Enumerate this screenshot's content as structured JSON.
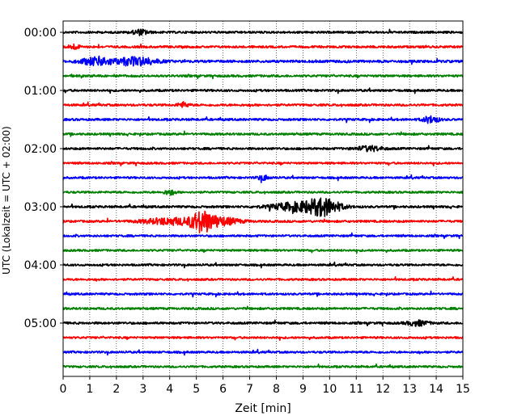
{
  "chart_data": {
    "type": "line",
    "title": "",
    "xlabel": "Zeit  [min]",
    "ylabel": "UTC (Lokalzeit = UTC + 02:00)",
    "xlim": [
      0,
      15
    ],
    "x_ticks": [
      "0",
      "1",
      "2",
      "3",
      "4",
      "5",
      "6",
      "7",
      "8",
      "9",
      "10",
      "11",
      "12",
      "13",
      "14",
      "15"
    ],
    "y_tick_labels": [
      "00:00",
      "01:00",
      "02:00",
      "03:00",
      "04:00",
      "05:00"
    ],
    "y_tick_rows": [
      0,
      4,
      8,
      12,
      16,
      20
    ],
    "grid": "vertical dotted",
    "trace_interval_minutes": 15,
    "colors_cycle": [
      "#000000",
      "#ff0000",
      "#0000ff",
      "#008000"
    ],
    "rows": [
      {
        "start": "00:00",
        "color": "#000000",
        "noise": 1.3,
        "events": [
          {
            "t": 2.9,
            "amp": 3,
            "dur": 0.3
          }
        ]
      },
      {
        "start": "00:15",
        "color": "#ff0000",
        "noise": 1.3,
        "events": [
          {
            "t": 0.4,
            "amp": 3,
            "dur": 0.2
          }
        ]
      },
      {
        "start": "00:30",
        "color": "#0000ff",
        "noise": 1.5,
        "events": [
          {
            "t": 1.3,
            "amp": 5,
            "dur": 0.6
          },
          {
            "t": 2.8,
            "amp": 5,
            "dur": 0.7
          }
        ]
      },
      {
        "start": "00:45",
        "color": "#008000",
        "noise": 1.3,
        "events": []
      },
      {
        "start": "01:00",
        "color": "#000000",
        "noise": 1.3,
        "events": []
      },
      {
        "start": "01:15",
        "color": "#ff0000",
        "noise": 1.3,
        "events": [
          {
            "t": 4.5,
            "amp": 3,
            "dur": 0.2
          }
        ]
      },
      {
        "start": "01:30",
        "color": "#0000ff",
        "noise": 1.3,
        "events": [
          {
            "t": 13.8,
            "amp": 4,
            "dur": 0.3
          }
        ]
      },
      {
        "start": "01:45",
        "color": "#008000",
        "noise": 1.3,
        "events": []
      },
      {
        "start": "02:00",
        "color": "#000000",
        "noise": 1.3,
        "events": [
          {
            "t": 11.5,
            "amp": 3,
            "dur": 0.5
          }
        ]
      },
      {
        "start": "02:15",
        "color": "#ff0000",
        "noise": 1.2,
        "events": []
      },
      {
        "start": "02:30",
        "color": "#0000ff",
        "noise": 1.2,
        "events": [
          {
            "t": 7.5,
            "amp": 3,
            "dur": 0.2
          }
        ]
      },
      {
        "start": "02:45",
        "color": "#008000",
        "noise": 1.2,
        "events": [
          {
            "t": 4.0,
            "amp": 3,
            "dur": 0.2
          }
        ]
      },
      {
        "start": "03:00",
        "color": "#000000",
        "noise": 1.3,
        "events": [
          {
            "t": 8.8,
            "amp": 5,
            "dur": 1.0
          },
          {
            "t": 9.8,
            "amp": 9,
            "dur": 0.6
          }
        ]
      },
      {
        "start": "03:15",
        "color": "#ff0000",
        "noise": 1.3,
        "events": [
          {
            "t": 4.0,
            "amp": 4,
            "dur": 1.0
          },
          {
            "t": 5.2,
            "amp": 10,
            "dur": 0.4
          },
          {
            "t": 5.8,
            "amp": 5,
            "dur": 0.8
          }
        ]
      },
      {
        "start": "03:30",
        "color": "#0000ff",
        "noise": 1.2,
        "events": []
      },
      {
        "start": "03:45",
        "color": "#008000",
        "noise": 1.2,
        "events": []
      },
      {
        "start": "04:00",
        "color": "#000000",
        "noise": 1.2,
        "events": []
      },
      {
        "start": "04:15",
        "color": "#ff0000",
        "noise": 1.2,
        "events": []
      },
      {
        "start": "04:30",
        "color": "#0000ff",
        "noise": 1.2,
        "events": []
      },
      {
        "start": "04:45",
        "color": "#008000",
        "noise": 1.3,
        "events": []
      },
      {
        "start": "05:00",
        "color": "#000000",
        "noise": 1.3,
        "events": [
          {
            "t": 13.3,
            "amp": 3,
            "dur": 0.4
          }
        ]
      },
      {
        "start": "05:15",
        "color": "#ff0000",
        "noise": 1.2,
        "events": []
      },
      {
        "start": "05:30",
        "color": "#0000ff",
        "noise": 1.2,
        "events": []
      },
      {
        "start": "05:45",
        "color": "#008000",
        "noise": 1.2,
        "events": []
      }
    ]
  }
}
